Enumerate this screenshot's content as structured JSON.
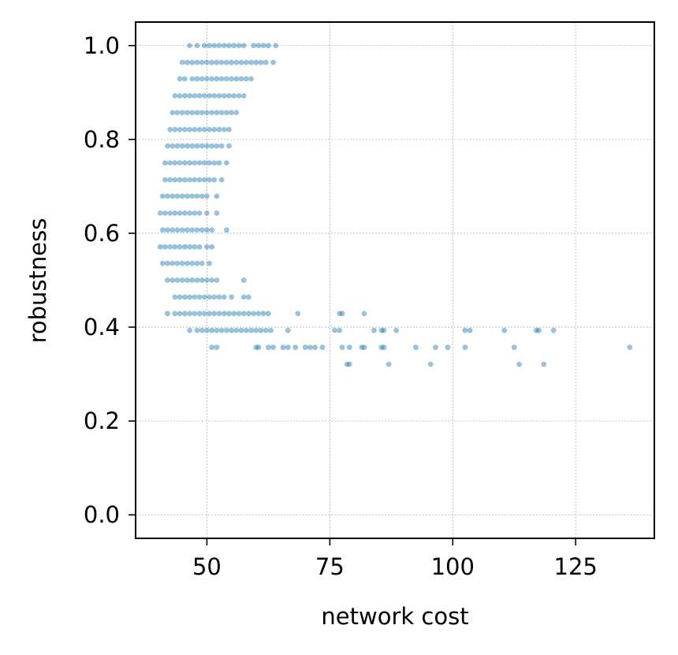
{
  "chart_data": {
    "type": "scatter",
    "title": "",
    "xlabel": "network cost",
    "ylabel": "robustness",
    "xlim": [
      35.5,
      141
    ],
    "ylim": [
      -0.05,
      1.05
    ],
    "xticks": [
      50,
      75,
      100,
      125
    ],
    "yticks": [
      0.0,
      0.2,
      0.4,
      0.6,
      0.8,
      1.0
    ],
    "xtick_labels": [
      "50",
      "75",
      "100",
      "125"
    ],
    "ytick_labels": [
      "0.0",
      "0.2",
      "0.4",
      "0.6",
      "0.8",
      "1.0"
    ],
    "grid": true,
    "legend": "none",
    "point_color": "#1f77b4",
    "point_alpha": 0.45,
    "series": [
      {
        "points": [
          [
            46.5,
            1.0
          ],
          [
            48,
            1.0
          ],
          [
            49.5,
            1.0
          ],
          [
            50.5,
            1.0
          ],
          [
            51.5,
            1.0
          ],
          [
            52.5,
            1.0
          ],
          [
            53.5,
            1.0
          ],
          [
            54.5,
            1.0
          ],
          [
            55.5,
            1.0
          ],
          [
            56.5,
            1.0
          ],
          [
            57.5,
            1.0
          ],
          [
            59.5,
            1.0
          ],
          [
            60.5,
            1.0
          ],
          [
            61.5,
            1.0
          ],
          [
            62.5,
            1.0
          ],
          [
            64,
            1.0
          ],
          [
            45,
            0.964
          ],
          [
            46,
            0.964
          ],
          [
            47,
            0.964
          ],
          [
            48,
            0.964
          ],
          [
            49,
            0.964
          ],
          [
            50,
            0.964
          ],
          [
            51,
            0.964
          ],
          [
            52,
            0.964
          ],
          [
            53,
            0.964
          ],
          [
            54,
            0.964
          ],
          [
            55,
            0.964
          ],
          [
            56,
            0.964
          ],
          [
            57,
            0.964
          ],
          [
            58,
            0.964
          ],
          [
            59,
            0.964
          ],
          [
            60,
            0.964
          ],
          [
            61,
            0.964
          ],
          [
            62,
            0.964
          ],
          [
            63.5,
            0.964
          ],
          [
            44.5,
            0.929
          ],
          [
            45.5,
            0.929
          ],
          [
            47,
            0.929
          ],
          [
            48,
            0.929
          ],
          [
            49,
            0.929
          ],
          [
            50,
            0.929
          ],
          [
            51,
            0.929
          ],
          [
            52,
            0.929
          ],
          [
            53,
            0.929
          ],
          [
            54,
            0.929
          ],
          [
            55,
            0.929
          ],
          [
            56,
            0.929
          ],
          [
            57,
            0.929
          ],
          [
            58,
            0.929
          ],
          [
            59,
            0.929
          ],
          [
            43.5,
            0.893
          ],
          [
            44.5,
            0.893
          ],
          [
            45.5,
            0.893
          ],
          [
            46.5,
            0.893
          ],
          [
            47.5,
            0.893
          ],
          [
            48.5,
            0.893
          ],
          [
            49.5,
            0.893
          ],
          [
            50.5,
            0.893
          ],
          [
            51.5,
            0.893
          ],
          [
            52.5,
            0.893
          ],
          [
            53.5,
            0.893
          ],
          [
            54.5,
            0.893
          ],
          [
            55.5,
            0.893
          ],
          [
            56.5,
            0.893
          ],
          [
            57.5,
            0.893
          ],
          [
            43,
            0.857
          ],
          [
            44,
            0.857
          ],
          [
            45,
            0.857
          ],
          [
            46,
            0.857
          ],
          [
            47,
            0.857
          ],
          [
            48,
            0.857
          ],
          [
            49,
            0.857
          ],
          [
            50,
            0.857
          ],
          [
            51,
            0.857
          ],
          [
            52,
            0.857
          ],
          [
            53,
            0.857
          ],
          [
            54,
            0.857
          ],
          [
            55,
            0.857
          ],
          [
            56,
            0.857
          ],
          [
            42.5,
            0.821
          ],
          [
            43.5,
            0.821
          ],
          [
            44.5,
            0.821
          ],
          [
            45.5,
            0.821
          ],
          [
            46.5,
            0.821
          ],
          [
            47.5,
            0.821
          ],
          [
            48.5,
            0.821
          ],
          [
            49.5,
            0.821
          ],
          [
            50.5,
            0.821
          ],
          [
            51.5,
            0.821
          ],
          [
            52.5,
            0.821
          ],
          [
            53.5,
            0.821
          ],
          [
            54.5,
            0.821
          ],
          [
            42,
            0.786
          ],
          [
            43,
            0.786
          ],
          [
            44,
            0.786
          ],
          [
            45,
            0.786
          ],
          [
            46,
            0.786
          ],
          [
            47,
            0.786
          ],
          [
            48,
            0.786
          ],
          [
            49,
            0.786
          ],
          [
            50,
            0.786
          ],
          [
            51,
            0.786
          ],
          [
            52,
            0.786
          ],
          [
            53,
            0.786
          ],
          [
            54.5,
            0.786
          ],
          [
            41.5,
            0.75
          ],
          [
            42.5,
            0.75
          ],
          [
            43.5,
            0.75
          ],
          [
            44.5,
            0.75
          ],
          [
            45.5,
            0.75
          ],
          [
            46.5,
            0.75
          ],
          [
            47.5,
            0.75
          ],
          [
            48.5,
            0.75
          ],
          [
            49.5,
            0.75
          ],
          [
            50.5,
            0.75
          ],
          [
            51.5,
            0.75
          ],
          [
            52.5,
            0.75
          ],
          [
            54,
            0.75
          ],
          [
            41.5,
            0.714
          ],
          [
            42.5,
            0.714
          ],
          [
            43.5,
            0.714
          ],
          [
            44.5,
            0.714
          ],
          [
            45.5,
            0.714
          ],
          [
            46.5,
            0.714
          ],
          [
            47.5,
            0.714
          ],
          [
            48.5,
            0.714
          ],
          [
            49.5,
            0.714
          ],
          [
            50.5,
            0.714
          ],
          [
            51.5,
            0.714
          ],
          [
            53,
            0.714
          ],
          [
            41,
            0.679
          ],
          [
            42,
            0.679
          ],
          [
            43,
            0.679
          ],
          [
            44,
            0.679
          ],
          [
            45,
            0.679
          ],
          [
            46,
            0.679
          ],
          [
            47,
            0.679
          ],
          [
            48,
            0.679
          ],
          [
            49,
            0.679
          ],
          [
            50,
            0.679
          ],
          [
            52,
            0.679
          ],
          [
            40.5,
            0.643
          ],
          [
            41.5,
            0.643
          ],
          [
            42.5,
            0.643
          ],
          [
            43.5,
            0.643
          ],
          [
            44.5,
            0.643
          ],
          [
            45.5,
            0.643
          ],
          [
            46.5,
            0.643
          ],
          [
            47.5,
            0.643
          ],
          [
            48.5,
            0.643
          ],
          [
            50,
            0.643
          ],
          [
            52,
            0.643
          ],
          [
            41,
            0.607
          ],
          [
            42,
            0.607
          ],
          [
            43,
            0.607
          ],
          [
            44,
            0.607
          ],
          [
            45,
            0.607
          ],
          [
            46,
            0.607
          ],
          [
            47,
            0.607
          ],
          [
            48,
            0.607
          ],
          [
            49,
            0.607
          ],
          [
            50,
            0.607
          ],
          [
            51,
            0.607
          ],
          [
            54,
            0.607
          ],
          [
            40.5,
            0.571
          ],
          [
            41.5,
            0.571
          ],
          [
            42.5,
            0.571
          ],
          [
            43.5,
            0.571
          ],
          [
            44.5,
            0.571
          ],
          [
            45.5,
            0.571
          ],
          [
            46.5,
            0.571
          ],
          [
            47.5,
            0.571
          ],
          [
            48.5,
            0.571
          ],
          [
            50,
            0.571
          ],
          [
            51,
            0.571
          ],
          [
            41,
            0.536
          ],
          [
            42,
            0.536
          ],
          [
            43,
            0.536
          ],
          [
            44,
            0.536
          ],
          [
            45,
            0.536
          ],
          [
            46,
            0.536
          ],
          [
            47,
            0.536
          ],
          [
            48,
            0.536
          ],
          [
            49,
            0.536
          ],
          [
            50.5,
            0.536
          ],
          [
            42,
            0.5
          ],
          [
            43,
            0.5
          ],
          [
            44,
            0.5
          ],
          [
            45,
            0.5
          ],
          [
            46,
            0.5
          ],
          [
            47,
            0.5
          ],
          [
            48,
            0.5
          ],
          [
            49,
            0.5
          ],
          [
            50,
            0.5
          ],
          [
            51,
            0.5
          ],
          [
            52,
            0.5
          ],
          [
            57.5,
            0.5
          ],
          [
            43.5,
            0.464
          ],
          [
            44.5,
            0.464
          ],
          [
            45.5,
            0.464
          ],
          [
            46.5,
            0.464
          ],
          [
            47.5,
            0.464
          ],
          [
            48.5,
            0.464
          ],
          [
            49.5,
            0.464
          ],
          [
            50.5,
            0.464
          ],
          [
            51.5,
            0.464
          ],
          [
            52.5,
            0.464
          ],
          [
            53.5,
            0.464
          ],
          [
            55,
            0.464
          ],
          [
            57.5,
            0.464
          ],
          [
            58.5,
            0.464
          ],
          [
            42,
            0.429
          ],
          [
            43.5,
            0.429
          ],
          [
            44.5,
            0.429
          ],
          [
            45.5,
            0.429
          ],
          [
            46.5,
            0.429
          ],
          [
            47.5,
            0.429
          ],
          [
            48.5,
            0.429
          ],
          [
            49.5,
            0.429
          ],
          [
            50.5,
            0.429
          ],
          [
            51.5,
            0.429
          ],
          [
            52.5,
            0.429
          ],
          [
            53.5,
            0.429
          ],
          [
            54.5,
            0.429
          ],
          [
            55.5,
            0.429
          ],
          [
            56.5,
            0.429
          ],
          [
            57.5,
            0.429
          ],
          [
            58.5,
            0.429
          ],
          [
            59.5,
            0.429
          ],
          [
            60.5,
            0.429
          ],
          [
            61.5,
            0.429
          ],
          [
            62.5,
            0.429
          ],
          [
            68.5,
            0.429
          ],
          [
            77,
            0.429
          ],
          [
            77.5,
            0.429
          ],
          [
            82,
            0.429
          ],
          [
            46.5,
            0.393
          ],
          [
            48,
            0.393
          ],
          [
            49,
            0.393
          ],
          [
            50,
            0.393
          ],
          [
            51,
            0.393
          ],
          [
            52,
            0.393
          ],
          [
            53,
            0.393
          ],
          [
            54,
            0.393
          ],
          [
            55,
            0.393
          ],
          [
            56,
            0.393
          ],
          [
            57,
            0.393
          ],
          [
            58,
            0.393
          ],
          [
            59,
            0.393
          ],
          [
            60,
            0.393
          ],
          [
            61,
            0.393
          ],
          [
            62,
            0.393
          ],
          [
            63,
            0.393
          ],
          [
            66.5,
            0.393
          ],
          [
            76,
            0.393
          ],
          [
            77,
            0.393
          ],
          [
            84,
            0.393
          ],
          [
            85.5,
            0.393
          ],
          [
            86,
            0.393
          ],
          [
            88.5,
            0.393
          ],
          [
            102.5,
            0.393
          ],
          [
            103.5,
            0.393
          ],
          [
            110.5,
            0.393
          ],
          [
            117,
            0.393
          ],
          [
            117.5,
            0.393
          ],
          [
            120.5,
            0.393
          ],
          [
            51,
            0.357
          ],
          [
            52,
            0.357
          ],
          [
            60,
            0.357
          ],
          [
            60.5,
            0.357
          ],
          [
            62.5,
            0.357
          ],
          [
            63.5,
            0.357
          ],
          [
            65.5,
            0.357
          ],
          [
            66.5,
            0.357
          ],
          [
            68,
            0.357
          ],
          [
            70,
            0.357
          ],
          [
            71,
            0.357
          ],
          [
            72,
            0.357
          ],
          [
            73.5,
            0.357
          ],
          [
            77.5,
            0.357
          ],
          [
            79,
            0.357
          ],
          [
            81.5,
            0.357
          ],
          [
            82,
            0.357
          ],
          [
            85.5,
            0.357
          ],
          [
            86,
            0.357
          ],
          [
            92.5,
            0.357
          ],
          [
            96.5,
            0.357
          ],
          [
            99,
            0.357
          ],
          [
            102.5,
            0.357
          ],
          [
            112.5,
            0.357
          ],
          [
            136,
            0.357
          ],
          [
            78.5,
            0.321
          ],
          [
            79,
            0.321
          ],
          [
            87,
            0.321
          ],
          [
            95.5,
            0.321
          ],
          [
            113.5,
            0.321
          ],
          [
            118.5,
            0.321
          ]
        ]
      }
    ]
  }
}
